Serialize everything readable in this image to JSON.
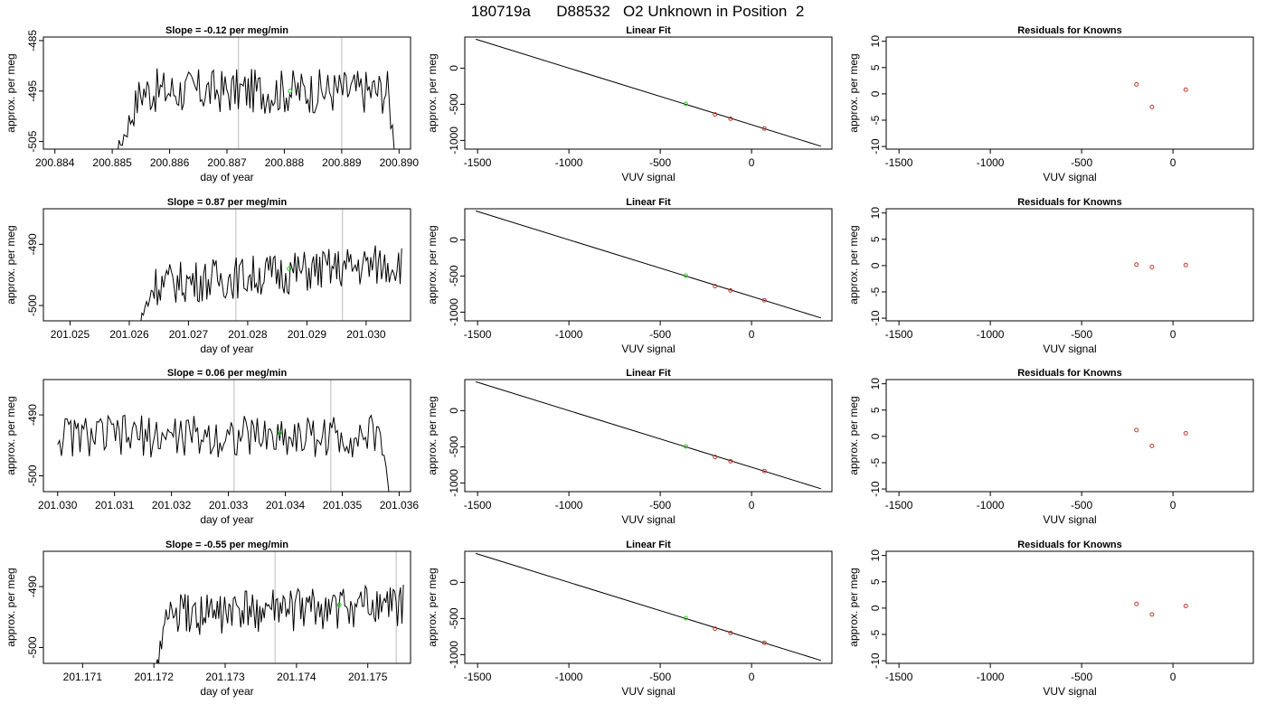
{
  "page_title": "180719a      D88532   O2 Unknown in Position  2",
  "colors": {
    "trace": "#000000",
    "vline": "#c8c8c8",
    "known": "#c0392b",
    "unknown": "#22cc22",
    "fit": "#000000"
  },
  "chart_data": [
    {
      "type": "line",
      "title": "Slope =  -0.12  per meg/min",
      "xlabel": "day of year",
      "ylabel": "approx. per meg",
      "xlim": [
        200.8838,
        200.8902
      ],
      "ylim": [
        -506.5,
        -484.3
      ],
      "xticks": [
        "200.884",
        "200.885",
        "200.886",
        "200.887",
        "200.888",
        "200.889",
        "200.890"
      ],
      "yticks": [
        "-485",
        "-495",
        "-505"
      ],
      "x_start": 200.8848,
      "x_end": 200.89,
      "baseline": -495,
      "amplitude": 4.5,
      "rise_start": 200.8849,
      "rise_end": 200.8855,
      "drop_start": 200.8898,
      "vlines": [
        200.8872,
        200.889
      ],
      "marker": {
        "x": 200.8881,
        "y": -495
      }
    },
    {
      "type": "line",
      "title": "Linear Fit",
      "xlabel": "VUV signal",
      "ylabel": "approx. per meg",
      "xlim": [
        -1570,
        440
      ],
      "ylim": [
        -1120,
        430
      ],
      "xticks": [
        "-1500",
        "-1000",
        "-500",
        "0"
      ],
      "yticks": [
        "0",
        "-500",
        "-1000"
      ],
      "fit_line": {
        "x": [
          -1510,
          380
        ],
        "y": [
          400,
          -1080
        ]
      },
      "knowns": [
        {
          "x": -200,
          "y": -640
        },
        {
          "x": -115,
          "y": -700
        },
        {
          "x": 70,
          "y": -835
        }
      ],
      "unknown": {
        "x": -360,
        "y": -495
      }
    },
    {
      "type": "scatter",
      "title": "Residuals for Knowns",
      "xlabel": "VUV signal",
      "ylabel": "approx. per meg",
      "xlim": [
        -1570,
        440
      ],
      "ylim": [
        -10.5,
        10.8
      ],
      "xticks": [
        "-1500",
        "-1000",
        "-500",
        "0"
      ],
      "yticks": [
        "10",
        "5",
        "0",
        "-5",
        "-10"
      ],
      "points": [
        {
          "x": -200,
          "y": 1.8
        },
        {
          "x": -115,
          "y": -2.5
        },
        {
          "x": 70,
          "y": 0.8
        }
      ]
    },
    {
      "type": "line",
      "title": "Slope =  0.87  per meg/min",
      "xlabel": "day of year",
      "ylabel": "approx. per meg",
      "xlim": [
        201.02455,
        201.03075
      ],
      "ylim": [
        -502.5,
        -484.2
      ],
      "xticks": [
        "201.025",
        "201.026",
        "201.027",
        "201.028",
        "201.029",
        "201.030"
      ],
      "yticks": [
        "-490",
        "-500"
      ],
      "x_start": 201.0259,
      "x_end": 201.0306,
      "baseline": -497,
      "trend_end": -493,
      "amplitude": 3.5,
      "rise_start": 201.026,
      "rise_end": 201.0264,
      "drop_start": null,
      "vlines": [
        201.0278,
        201.0296
      ],
      "marker": {
        "x": 201.0287,
        "y": -494
      }
    },
    {
      "type": "line",
      "title": "Linear Fit",
      "xlabel": "VUV signal",
      "ylabel": "approx. per meg",
      "xlim": [
        -1570,
        440
      ],
      "ylim": [
        -1120,
        430
      ],
      "xticks": [
        "-1500",
        "-1000",
        "-500",
        "0"
      ],
      "yticks": [
        "0",
        "-500",
        "-1000"
      ],
      "fit_line": {
        "x": [
          -1510,
          380
        ],
        "y": [
          400,
          -1080
        ]
      },
      "knowns": [
        {
          "x": -200,
          "y": -640
        },
        {
          "x": -115,
          "y": -700
        },
        {
          "x": 70,
          "y": -835
        }
      ],
      "unknown": {
        "x": -360,
        "y": -495
      }
    },
    {
      "type": "scatter",
      "title": "Residuals for Knowns",
      "xlabel": "VUV signal",
      "ylabel": "approx. per meg",
      "xlim": [
        -1570,
        440
      ],
      "ylim": [
        -10.5,
        10.8
      ],
      "xticks": [
        "-1500",
        "-1000",
        "-500",
        "0"
      ],
      "yticks": [
        "10",
        "5",
        "0",
        "-5",
        "-10"
      ],
      "points": [
        {
          "x": -200,
          "y": 0.2
        },
        {
          "x": -115,
          "y": -0.3
        },
        {
          "x": 70,
          "y": 0.1
        }
      ]
    },
    {
      "type": "line",
      "title": "Slope =  0.06  per meg/min",
      "xlabel": "day of year",
      "ylabel": "approx. per meg",
      "xlim": [
        201.02975,
        201.0362
      ],
      "ylim": [
        -502.6,
        -484.2
      ],
      "xticks": [
        "201.030",
        "201.031",
        "201.032",
        "201.033",
        "201.034",
        "201.035",
        "201.036"
      ],
      "yticks": [
        "-490",
        "-500"
      ],
      "x_start": 201.03,
      "x_end": 201.0359,
      "baseline": -493.5,
      "amplitude": 3.5,
      "rise_start": null,
      "rise_end": null,
      "drop_start": 201.0357,
      "vlines": [
        201.0331,
        201.0348
      ],
      "marker": {
        "x": 201.0339,
        "y": -493
      }
    },
    {
      "type": "line",
      "title": "Linear Fit",
      "xlabel": "VUV signal",
      "ylabel": "approx. per meg",
      "xlim": [
        -1570,
        440
      ],
      "ylim": [
        -1120,
        430
      ],
      "xticks": [
        "-1500",
        "-1000",
        "-500",
        "0"
      ],
      "yticks": [
        "0",
        "-500",
        "-1000"
      ],
      "fit_line": {
        "x": [
          -1510,
          380
        ],
        "y": [
          400,
          -1080
        ]
      },
      "knowns": [
        {
          "x": -200,
          "y": -640
        },
        {
          "x": -115,
          "y": -700
        },
        {
          "x": 70,
          "y": -835
        }
      ],
      "unknown": {
        "x": -360,
        "y": -495
      }
    },
    {
      "type": "scatter",
      "title": "Residuals for Knowns",
      "xlabel": "VUV signal",
      "ylabel": "approx. per meg",
      "xlim": [
        -1570,
        440
      ],
      "ylim": [
        -10.5,
        10.8
      ],
      "points": [
        {
          "x": -200,
          "y": 1.2
        },
        {
          "x": -115,
          "y": -1.8
        },
        {
          "x": 70,
          "y": 0.6
        }
      ],
      "xticks": [
        "-1500",
        "-1000",
        "-500",
        "0"
      ],
      "yticks": [
        "10",
        "5",
        "0",
        "-5",
        "-10"
      ]
    },
    {
      "type": "line",
      "title": "Slope =  -0.55  per meg/min",
      "xlabel": "day of year",
      "ylabel": "approx. per meg",
      "xlim": [
        201.17045,
        201.1756
      ],
      "ylim": [
        -502.6,
        -484.2
      ],
      "xticks": [
        "201.171",
        "201.172",
        "201.173",
        "201.174",
        "201.175"
      ],
      "yticks": [
        "-490",
        "-500"
      ],
      "x_start": 201.1718,
      "x_end": 201.1755,
      "baseline": -495,
      "trend_end": -493,
      "amplitude": 3.5,
      "rise_start": 201.1719,
      "rise_end": 201.1722,
      "drop_start": null,
      "vlines": [
        201.1737,
        201.1754
      ],
      "marker": {
        "x": 201.1746,
        "y": -493
      }
    },
    {
      "type": "line",
      "title": "Linear Fit",
      "xlabel": "VUV signal",
      "ylabel": "approx. per meg",
      "xlim": [
        -1570,
        440
      ],
      "ylim": [
        -1120,
        430
      ],
      "xticks": [
        "-1500",
        "-1000",
        "-500",
        "0"
      ],
      "yticks": [
        "0",
        "-500",
        "-1000"
      ],
      "fit_line": {
        "x": [
          -1510,
          380
        ],
        "y": [
          400,
          -1080
        ]
      },
      "knowns": [
        {
          "x": -200,
          "y": -640
        },
        {
          "x": -115,
          "y": -700
        },
        {
          "x": 70,
          "y": -835
        }
      ],
      "unknown": {
        "x": -360,
        "y": -495
      }
    },
    {
      "type": "scatter",
      "title": "Residuals for Knowns",
      "xlabel": "VUV signal",
      "ylabel": "approx. per meg",
      "xlim": [
        -1570,
        440
      ],
      "ylim": [
        -10.5,
        10.8
      ],
      "xticks": [
        "-1500",
        "-1000",
        "-500",
        "0"
      ],
      "yticks": [
        "10",
        "5",
        "0",
        "-5",
        "-10"
      ],
      "points": [
        {
          "x": -200,
          "y": 0.8
        },
        {
          "x": -115,
          "y": -1.2
        },
        {
          "x": 70,
          "y": 0.4
        }
      ]
    }
  ]
}
